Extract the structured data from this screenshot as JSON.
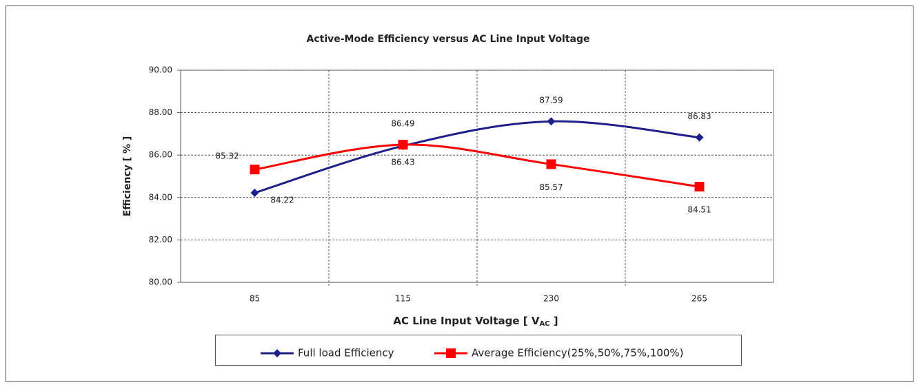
{
  "chart_data": {
    "type": "line",
    "title": "Active-Mode Efficiency versus AC Line Input Voltage",
    "ylabel": "Efficiency [ % ]",
    "xlabel": {
      "text": "AC Line Input Voltage [ V",
      "subscript": "AC",
      "suffix": " ]"
    },
    "categories": [
      "85",
      "115",
      "230",
      "265"
    ],
    "series": [
      {
        "name": "Full load Efficiency",
        "color": "#1f1f8c",
        "marker": "diamond",
        "values": [
          84.22,
          86.43,
          87.59,
          86.83
        ]
      },
      {
        "name": "Average Efficiency(25%,50%,75%,100%)",
        "color": "#ff0000",
        "marker": "square",
        "values": [
          85.32,
          86.49,
          85.57,
          84.51
        ]
      }
    ],
    "ylim": [
      80,
      90
    ],
    "yticks": [
      {
        "value": 80,
        "label": "80.00"
      },
      {
        "value": 82,
        "label": "82.00"
      },
      {
        "value": 84,
        "label": "84.00"
      },
      {
        "value": 86,
        "label": "86.00"
      },
      {
        "value": 88,
        "label": "88.00"
      },
      {
        "value": 90,
        "label": "90.00"
      }
    ],
    "grid": true,
    "smooth": true,
    "legend": "bottom"
  }
}
